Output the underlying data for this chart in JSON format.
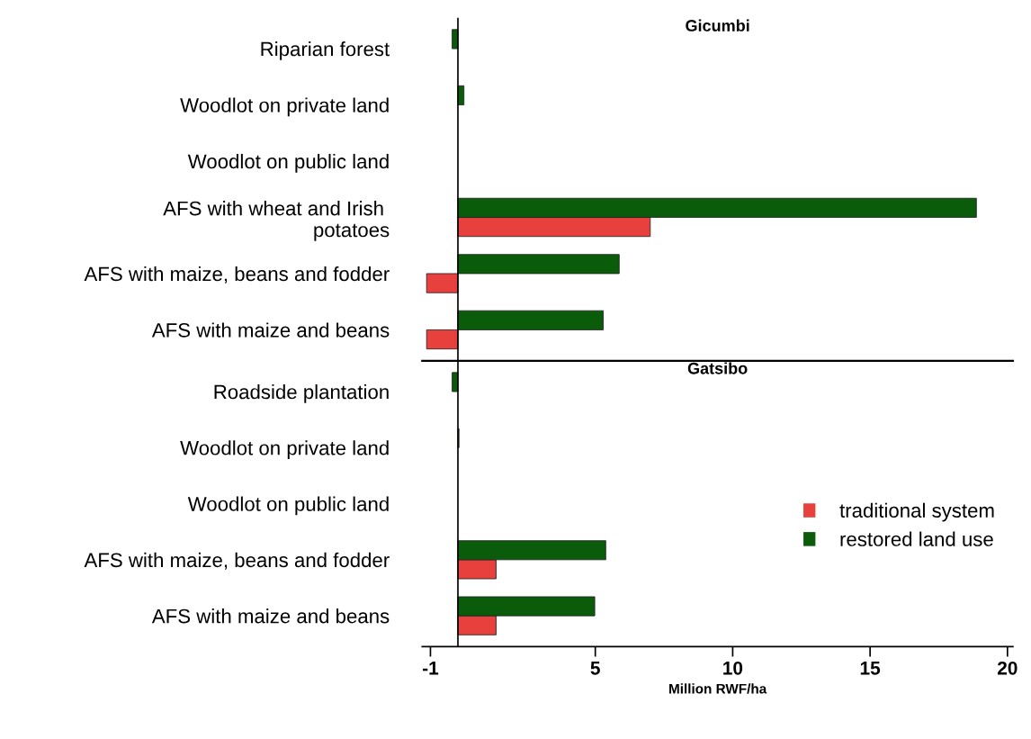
{
  "chart_data": [
    {
      "type": "bar",
      "orientation": "horizontal",
      "title": "Gicumbi",
      "categories": [
        "Riparian forest",
        "Woodlot on private land",
        "Woodlot on public land",
        "AFS with wheat and Irish \npotatoes",
        "AFS with maize, beans and fodder",
        "AFS with maize and beans"
      ],
      "series": [
        {
          "color": "#e8403c",
          "values": [
            null,
            null,
            null,
            7.0,
            -1.14,
            -1.14
          ]
        },
        {
          "color": "#0a5c0a",
          "values": [
            -0.21,
            0.22,
            null,
            18.87,
            5.87,
            5.29
          ]
        }
      ],
      "xlim": [
        -1.3,
        20.2
      ],
      "tick_labels": "y",
      "ref_lines": [
        {
          "axis": "x",
          "value": 0
        }
      ]
    },
    {
      "type": "bar",
      "orientation": "horizontal",
      "title": "Gatsibo",
      "xlabel": "Million RWF/ha",
      "categories": [
        "Roadside plantation",
        "Woodlot on private land",
        "Woodlot on public land",
        "AFS with maize, beans and fodder",
        "AFS with maize and beans"
      ],
      "series": [
        {
          "name": "traditional system",
          "color": "#e8403c",
          "values": [
            null,
            null,
            null,
            1.39,
            1.39
          ]
        },
        {
          "name": "restored land use",
          "color": "#0a5c0a",
          "values": [
            -0.21,
            0.04,
            null,
            5.38,
            4.98
          ]
        }
      ],
      "xlim": [
        -1.3,
        20.2
      ],
      "xticks": [
        -1,
        5,
        10,
        15,
        20
      ],
      "ref_lines": [
        {
          "axis": "x",
          "value": 0
        }
      ],
      "legend": "right"
    }
  ]
}
